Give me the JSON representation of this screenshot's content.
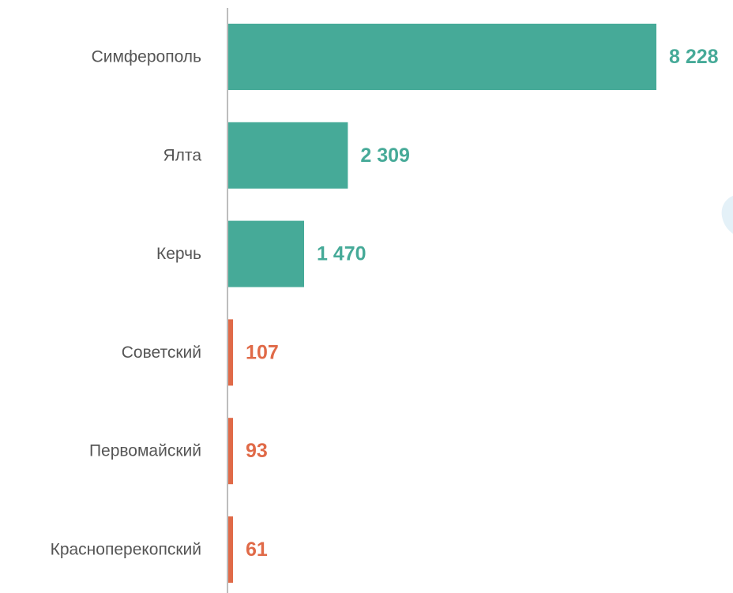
{
  "colors": {
    "high": "#46aa98",
    "low": "#e06a48",
    "axis": "#bdbdbd",
    "label": "#555555",
    "watermark": "#e4f1f8"
  },
  "chart_data": {
    "type": "bar",
    "orientation": "horizontal",
    "title": "",
    "xlabel": "",
    "ylabel": "",
    "grid": false,
    "legend": "none",
    "xlim": [
      0,
      8228
    ],
    "categories": [
      "Симферополь",
      "Ялта",
      "Керчь",
      "Советский",
      "Первомайский",
      "Красноперекопский"
    ],
    "values": [
      8228,
      2309,
      1470,
      107,
      93,
      61
    ],
    "value_labels": [
      "8 228",
      "2 309",
      "1 470",
      "107",
      "93",
      "61"
    ],
    "bar_colors": [
      "#46aa98",
      "#46aa98",
      "#46aa98",
      "#e06a48",
      "#e06a48",
      "#e06a48"
    ]
  }
}
